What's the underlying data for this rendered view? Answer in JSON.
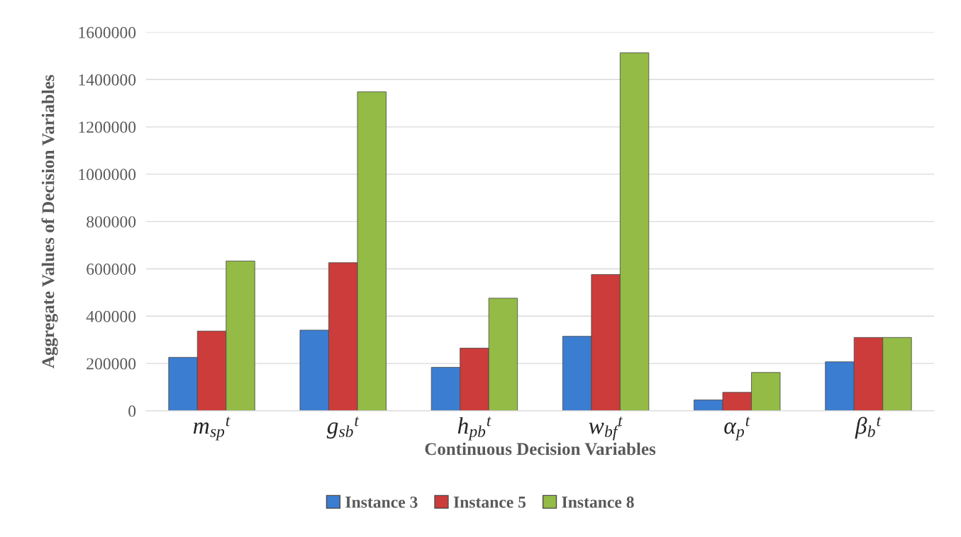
{
  "chart_data": {
    "type": "bar",
    "xlabel": "Continuous Decision Variables",
    "ylabel": "Aggregate Values of Decision Variables",
    "categories": [
      "m$_{sp}$$^{t}$",
      "g$_{sb}$$^{t}$",
      "h$_{pb}$$^{t}$",
      "w$_{bf}$$^{t}$",
      "α$_{p}$$^{t}$",
      "β$_{b}$$^{t}$"
    ],
    "series": [
      {
        "name": "Instance 3",
        "color": "#3b7dd0",
        "values": [
          226000,
          341000,
          184000,
          315000,
          46000,
          207000
        ]
      },
      {
        "name": "Instance 5",
        "color": "#cc3c3a",
        "values": [
          337000,
          626000,
          265000,
          576000,
          78000,
          310000
        ]
      },
      {
        "name": "Instance 8",
        "color": "#93bb45",
        "values": [
          633000,
          1348000,
          476000,
          1513000,
          162000,
          310000
        ]
      }
    ],
    "ylim": [
      0,
      1600000
    ],
    "yticks": [
      0,
      200000,
      400000,
      600000,
      800000,
      1000000,
      1200000,
      1400000,
      1600000
    ],
    "grid": "y",
    "legend": "bottom"
  }
}
